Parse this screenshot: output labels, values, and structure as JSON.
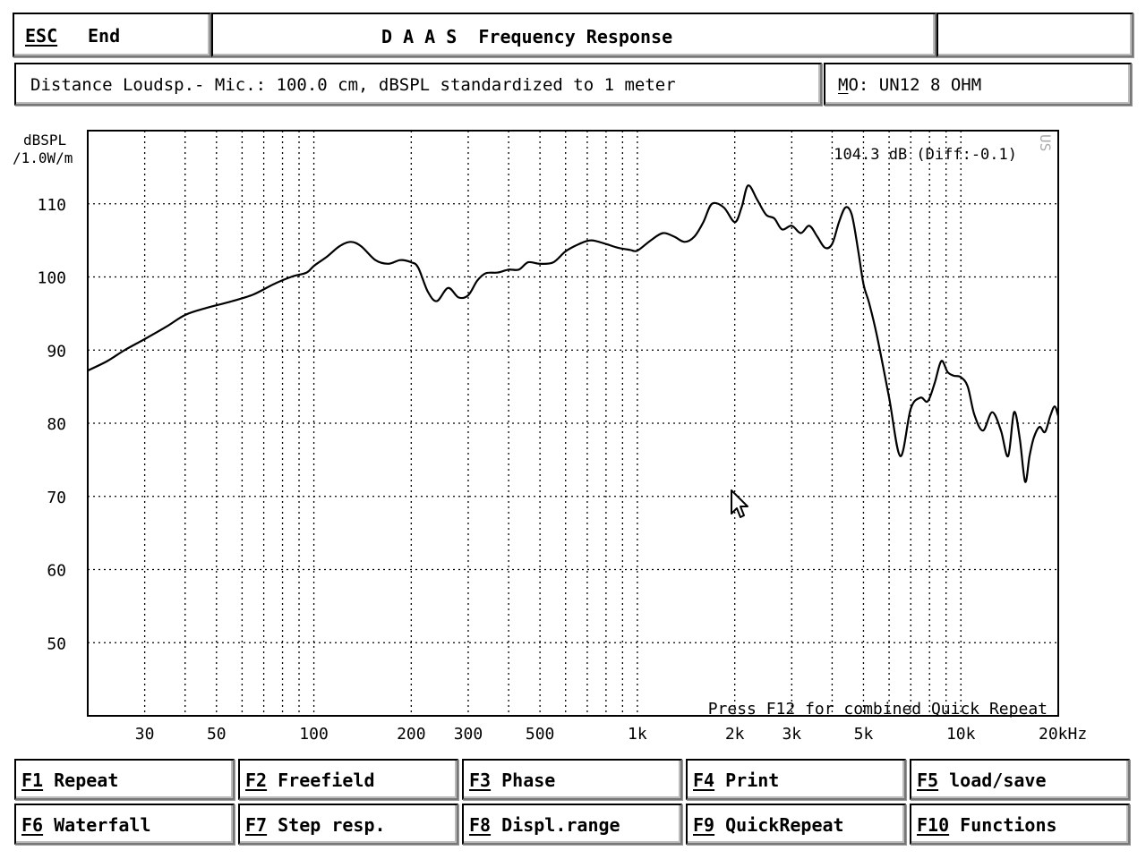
{
  "header": {
    "esc_key": "ESC",
    "end_label": "End",
    "title": "D A A S  Frequency Response",
    "right_box": ""
  },
  "info": {
    "left_text": "Distance Loudsp.- Mic.: 100.0 cm, dBSPL standardized to 1 meter",
    "mo_key": "M",
    "mo_rest": "O: UN12 8 OHM"
  },
  "chart_data": {
    "type": "line",
    "title": "",
    "ylabel": "dBSPL\n/1.0W/m",
    "xlabel": "",
    "x_scale": "log",
    "xlim": [
      20,
      20000
    ],
    "ylim": [
      40,
      120
    ],
    "grid": true,
    "y_ticks": [
      50,
      60,
      70,
      80,
      90,
      100,
      110
    ],
    "x_ticks": [
      {
        "v": 30,
        "label": "30"
      },
      {
        "v": 50,
        "label": "50"
      },
      {
        "v": 100,
        "label": "100"
      },
      {
        "v": 200,
        "label": "200"
      },
      {
        "v": 300,
        "label": "300"
      },
      {
        "v": 500,
        "label": "500"
      },
      {
        "v": 1000,
        "label": "1k"
      },
      {
        "v": 2000,
        "label": "2k"
      },
      {
        "v": 3000,
        "label": "3k"
      },
      {
        "v": 5000,
        "label": "5k"
      },
      {
        "v": 10000,
        "label": "10k"
      },
      {
        "v": 20000,
        "label": "20kHz"
      }
    ],
    "readout": "104.3 dB (Diff:-0.1)",
    "side_label": "US",
    "bottom_note": "Press F12 for combined Quick Repeat",
    "series": [
      {
        "x": [
          20,
          23,
          26,
          30,
          35,
          40,
          46,
          55,
          65,
          75,
          85,
          95,
          100,
          110,
          120,
          130,
          140,
          155,
          170,
          185,
          200,
          210,
          225,
          240,
          260,
          280,
          300,
          320,
          340,
          370,
          400,
          430,
          460,
          500,
          550,
          600,
          660,
          720,
          800,
          870,
          950,
          1000,
          1100,
          1200,
          1300,
          1400,
          1500,
          1600,
          1700,
          1850,
          2000,
          2100,
          2200,
          2350,
          2500,
          2650,
          2800,
          3000,
          3200,
          3400,
          3600,
          3800,
          4000,
          4200,
          4400,
          4600,
          4800,
          5000,
          5200,
          5500,
          6000,
          6500,
          7000,
          7500,
          7900,
          8300,
          8700,
          9100,
          9500,
          10000,
          10500,
          11000,
          11700,
          12500,
          13300,
          14000,
          14600,
          15200,
          15800,
          16300,
          16800,
          17500,
          18200,
          18900,
          19500,
          20000
        ],
        "y": [
          87.2,
          88.5,
          90.0,
          91.5,
          93.2,
          94.8,
          95.7,
          96.6,
          97.6,
          99.0,
          100.0,
          100.6,
          101.5,
          102.8,
          104.2,
          104.8,
          104.2,
          102.3,
          101.8,
          102.3,
          102.0,
          101.3,
          98.0,
          96.7,
          98.5,
          97.2,
          97.5,
          99.5,
          100.5,
          100.6,
          101.0,
          101.0,
          102.0,
          101.8,
          102.0,
          103.5,
          104.5,
          105.0,
          104.5,
          104.0,
          103.7,
          103.6,
          105.0,
          106.0,
          105.5,
          104.8,
          105.5,
          107.5,
          110.0,
          109.5,
          107.5,
          109.5,
          112.5,
          110.5,
          108.5,
          108.0,
          106.5,
          107.0,
          106.0,
          107.0,
          105.5,
          104.0,
          104.5,
          107.5,
          109.5,
          108.5,
          104.0,
          99.0,
          96.5,
          92.0,
          83.5,
          75.5,
          82.0,
          83.5,
          83.0,
          85.5,
          88.5,
          87.0,
          86.5,
          86.3,
          85.0,
          81.2,
          79.0,
          81.5,
          79.0,
          75.5,
          81.5,
          78.0,
          72.0,
          75.5,
          78.0,
          79.5,
          78.8,
          81.0,
          82.3,
          81.0
        ]
      }
    ]
  },
  "fkeys": [
    {
      "key": "F1",
      "label": " Repeat"
    },
    {
      "key": "F2",
      "label": " Freefield"
    },
    {
      "key": "F3",
      "label": " Phase"
    },
    {
      "key": "F4",
      "label": " Print"
    },
    {
      "key": "F5",
      "label": " load/save"
    },
    {
      "key": "F6",
      "label": " Waterfall"
    },
    {
      "key": "F7",
      "label": " Step resp."
    },
    {
      "key": "F8",
      "label": " Displ.range"
    },
    {
      "key": "F9",
      "label": " QuickRepeat"
    },
    {
      "key": "F10",
      "label": " Functions"
    }
  ]
}
